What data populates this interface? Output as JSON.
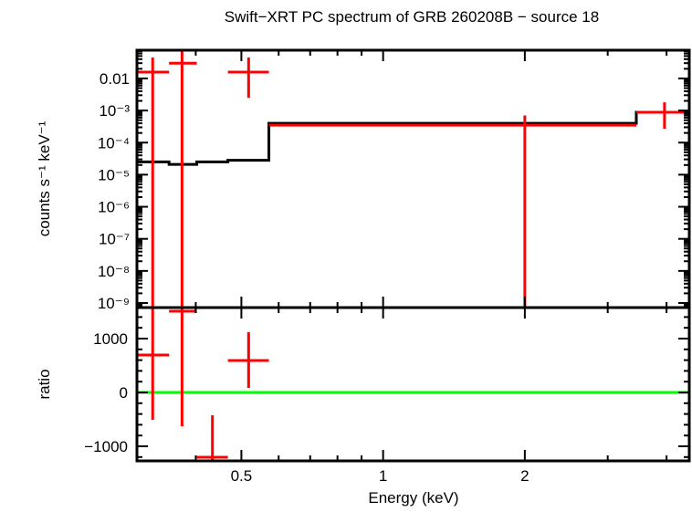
{
  "chart_data": [
    {
      "type": "line",
      "title": "Swift−XRT PC spectrum of GRB 260208B − source 18",
      "ylabel": "counts s⁻¹ keV⁻¹",
      "xscale": "log",
      "yscale": "log",
      "xlim": [
        0.3,
        4.47
      ],
      "ylim": [
        7.2e-10,
        0.076
      ],
      "yticks": [
        {
          "v": 0.01,
          "label": "0.01"
        },
        {
          "v": 0.001,
          "label": "10⁻³"
        },
        {
          "v": 0.0001,
          "label": "10⁻⁴"
        },
        {
          "v": 1e-05,
          "label": "10⁻⁵"
        },
        {
          "v": 1e-06,
          "label": "10⁻⁶"
        },
        {
          "v": 1e-07,
          "label": "10⁻⁷"
        },
        {
          "v": 1e-08,
          "label": "10⁻⁸"
        },
        {
          "v": 1e-09,
          "label": "10⁻⁹"
        }
      ],
      "series": [
        {
          "name": "data",
          "color": "#ff0000",
          "points": [
            {
              "x": 0.324,
              "xlo": 0.3,
              "xhi": 0.351,
              "y": 0.0158,
              "ylo": 1e-12,
              "yhi": 0.045
            },
            {
              "x": 0.374,
              "xlo": 0.351,
              "xhi": 0.402,
              "y": 0.03,
              "ylo": 1e-12,
              "yhi": 1
            },
            {
              "x": 0.518,
              "xlo": 0.468,
              "xhi": 0.572,
              "y": 0.0158,
              "ylo": 0.0025,
              "yhi": 0.045
            },
            {
              "x": 2.0,
              "xlo": 0.572,
              "xhi": 3.45,
              "y": 0.00035,
              "ylo": 1e-12,
              "yhi": 0.0007
            },
            {
              "x": 3.96,
              "xlo": 3.45,
              "xhi": 4.47,
              "y": 0.00088,
              "ylo": 0.00027,
              "yhi": 0.0018
            }
          ]
        },
        {
          "name": "model",
          "color": "#000000",
          "steps": [
            {
              "xlo": 0.3,
              "xhi": 0.351,
              "y": 2.5e-05
            },
            {
              "xlo": 0.351,
              "xhi": 0.402,
              "y": 2.1e-05
            },
            {
              "xlo": 0.402,
              "xhi": 0.468,
              "y": 2.5e-05
            },
            {
              "xlo": 0.468,
              "xhi": 0.572,
              "y": 2.8e-05
            },
            {
              "xlo": 0.572,
              "xhi": 3.45,
              "y": 0.0004
            },
            {
              "xlo": 3.45,
              "xhi": 4.47,
              "y": 0.00088
            }
          ]
        }
      ]
    },
    {
      "type": "scatter",
      "xlabel": "Energy (keV)",
      "ylabel": "ratio",
      "xscale": "log",
      "xlim": [
        0.3,
        4.47
      ],
      "ylim": [
        -1271,
        1576
      ],
      "xticks": [
        {
          "v": 0.5,
          "label": "0.5"
        },
        {
          "v": 1,
          "label": "1"
        },
        {
          "v": 2,
          "label": "2"
        }
      ],
      "yticks": [
        {
          "v": 1000,
          "label": "1000"
        },
        {
          "v": 0,
          "label": "0"
        },
        {
          "v": -1000,
          "label": "−1000"
        }
      ],
      "reference_line": {
        "y": 0,
        "color": "#00ff00"
      },
      "series": [
        {
          "name": "ratio",
          "color": "#ff0000",
          "points": [
            {
              "x": 0.324,
              "xlo": 0.3,
              "xhi": 0.351,
              "y": 695,
              "ylo": -508,
              "yhi": 3000
            },
            {
              "x": 0.374,
              "xlo": 0.351,
              "xhi": 0.402,
              "y": 1508,
              "ylo": -627,
              "yhi": 3000
            },
            {
              "x": 0.434,
              "xlo": 0.402,
              "xhi": 0.468,
              "y": -1203,
              "ylo": -3000,
              "yhi": -424
            },
            {
              "x": 0.518,
              "xlo": 0.468,
              "xhi": 0.572,
              "y": 593,
              "ylo": 85,
              "yhi": 1119
            }
          ]
        }
      ]
    }
  ]
}
